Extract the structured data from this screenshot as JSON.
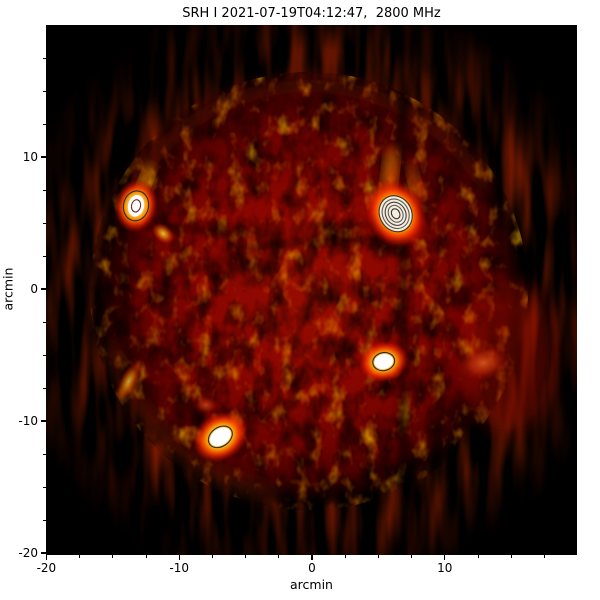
{
  "figure": {
    "title": "SRH I 2021-07-19T04:12:47,  2800 MHz",
    "xlabel": "arcmin",
    "ylabel": "arcmin",
    "background_color": "#ffffff",
    "x_axis": {
      "major_ticks": [
        {
          "value": -20,
          "label": "-20"
        },
        {
          "value": -10,
          "label": "-10"
        },
        {
          "value": 0,
          "label": "0"
        },
        {
          "value": 10,
          "label": "10"
        }
      ],
      "minor_ticks": [
        -17.5,
        -15,
        -12.5,
        -7.5,
        -5,
        -2.5,
        2.5,
        5,
        7.5,
        12.5,
        15,
        17.5
      ],
      "range": [
        -20,
        19.9
      ]
    },
    "y_axis": {
      "major_ticks": [
        {
          "value": -20,
          "label": "-20"
        },
        {
          "value": -10,
          "label": "-10"
        },
        {
          "value": 0,
          "label": "0"
        },
        {
          "value": 10,
          "label": "10"
        }
      ],
      "minor_ticks": [
        -17.5,
        -15,
        -12.5,
        -7.5,
        -5,
        -2.5,
        2.5,
        5,
        7.5,
        12.5,
        15,
        17.5
      ],
      "range": [
        -20,
        19.95
      ]
    }
  },
  "chart_data": {
    "type": "heatmap",
    "title": "SRH I 2021-07-19T04:12:47,  2800 MHz",
    "xlabel": "arcmin",
    "ylabel": "arcmin",
    "xlim": [
      -20,
      20
    ],
    "ylim": [
      -20,
      20
    ],
    "grid": false,
    "legend": false,
    "colormap": [
      "#000000",
      "#6f0000",
      "#e81600",
      "#ffa200",
      "#ffffff"
    ],
    "description": "Siberian Radioheliograph Stokes I microwave image of the Sun at 2800 MHz: mottled quiet-sun red disk (~16 arcmin radius) on black sky, bright gyroresonance sources outlined with dark contour lines, vertical instrumental stripe artifacts",
    "solar_disk": {
      "center_arcmin": [
        0,
        0
      ],
      "radius_arcmin": 16.3
    },
    "artifacts": {
      "vertical_stripes_arcmin_x": [
        -14.2,
        6.9
      ],
      "dark_equatorial_lanes_arcmin_y": [
        2.5,
        4.5
      ]
    },
    "sources": [
      {
        "name": "ne-active-region",
        "x_arcmin": -13.25,
        "y_arcmin": 6.3,
        "strength": "bright",
        "contour_levels": 2,
        "rot": 12,
        "glow": [
          22,
          27
        ],
        "glow_grad": "g-core",
        "glow_op": 0.95,
        "core": [
          8,
          11
        ],
        "core_fill": "#ffffff",
        "rings": [
          [
            12.5,
            15,
            "#2c2c2c"
          ],
          [
            4.5,
            6.2,
            "#7c2828"
          ]
        ]
      },
      {
        "name": "nw-active-region",
        "x_arcmin": 6.3,
        "y_arcmin": 5.7,
        "strength": "brightest",
        "contour_levels": 5,
        "rot": -28,
        "glow": [
          30,
          36
        ],
        "glow_grad": "g-core",
        "glow_op": 1,
        "core": [
          15.5,
          18
        ],
        "core_fill": "#f6ecdc",
        "rings": [
          [
            16,
            18.5,
            "#353535"
          ],
          [
            13,
            15.2,
            "#5a5a5a"
          ],
          [
            10,
            12,
            "#404040"
          ],
          [
            7,
            8.8,
            "#5a5a5a"
          ],
          [
            4,
            5.2,
            "#303030"
          ]
        ]
      },
      {
        "name": "w-source",
        "x_arcmin": 5.4,
        "y_arcmin": -5.5,
        "strength": "bright",
        "contour_levels": 1,
        "rot": -12,
        "glow": [
          26,
          21
        ],
        "glow_grad": "g-core",
        "glow_op": 0.9,
        "core": [
          9.5,
          7.5
        ],
        "core_fill": "#ffffff",
        "rings": [
          [
            11,
            9,
            "#2c2c2c"
          ]
        ]
      },
      {
        "name": "se-source",
        "x_arcmin": -6.9,
        "y_arcmin": -11.2,
        "strength": "bright",
        "contour_levels": 1,
        "rot": -35,
        "glow": [
          30,
          24
        ],
        "glow_grad": "g-core",
        "glow_op": 0.95,
        "core": [
          11.5,
          8
        ],
        "core_fill": "#ffffff",
        "rings": [
          [
            13,
            9.5,
            "#2c2c2c"
          ]
        ]
      },
      {
        "name": "e-enhancement",
        "x_arcmin": -11.2,
        "y_arcmin": 4.2,
        "strength": "moderate",
        "contour_levels": 0,
        "rot": 40,
        "glow": [
          13,
          9
        ],
        "glow_grad": "g-gold",
        "glow_op": 0.9,
        "rings": []
      },
      {
        "name": "w-limb-enhancement",
        "x_arcmin": 12.9,
        "y_arcmin": -5.6,
        "strength": "moderate",
        "contour_levels": 0,
        "rot": -10,
        "glow": [
          27,
          18
        ],
        "glow_grad": "g-orange",
        "glow_op": 0.8,
        "rings": []
      },
      {
        "name": "se-limb-streak",
        "x_arcmin": -13.8,
        "y_arcmin": -7.0,
        "strength": "moderate",
        "contour_levels": 0,
        "rot": 28,
        "glow": [
          9,
          22
        ],
        "glow_grad": "g-gold",
        "glow_op": 0.75,
        "rings": []
      },
      {
        "name": "s-enhancement",
        "x_arcmin": -8.0,
        "y_arcmin": -8.8,
        "strength": "faint",
        "contour_levels": 0,
        "rot": 0,
        "glow": [
          12,
          9
        ],
        "glow_grad": "g-orange",
        "glow_op": 0.65,
        "rings": []
      }
    ]
  }
}
